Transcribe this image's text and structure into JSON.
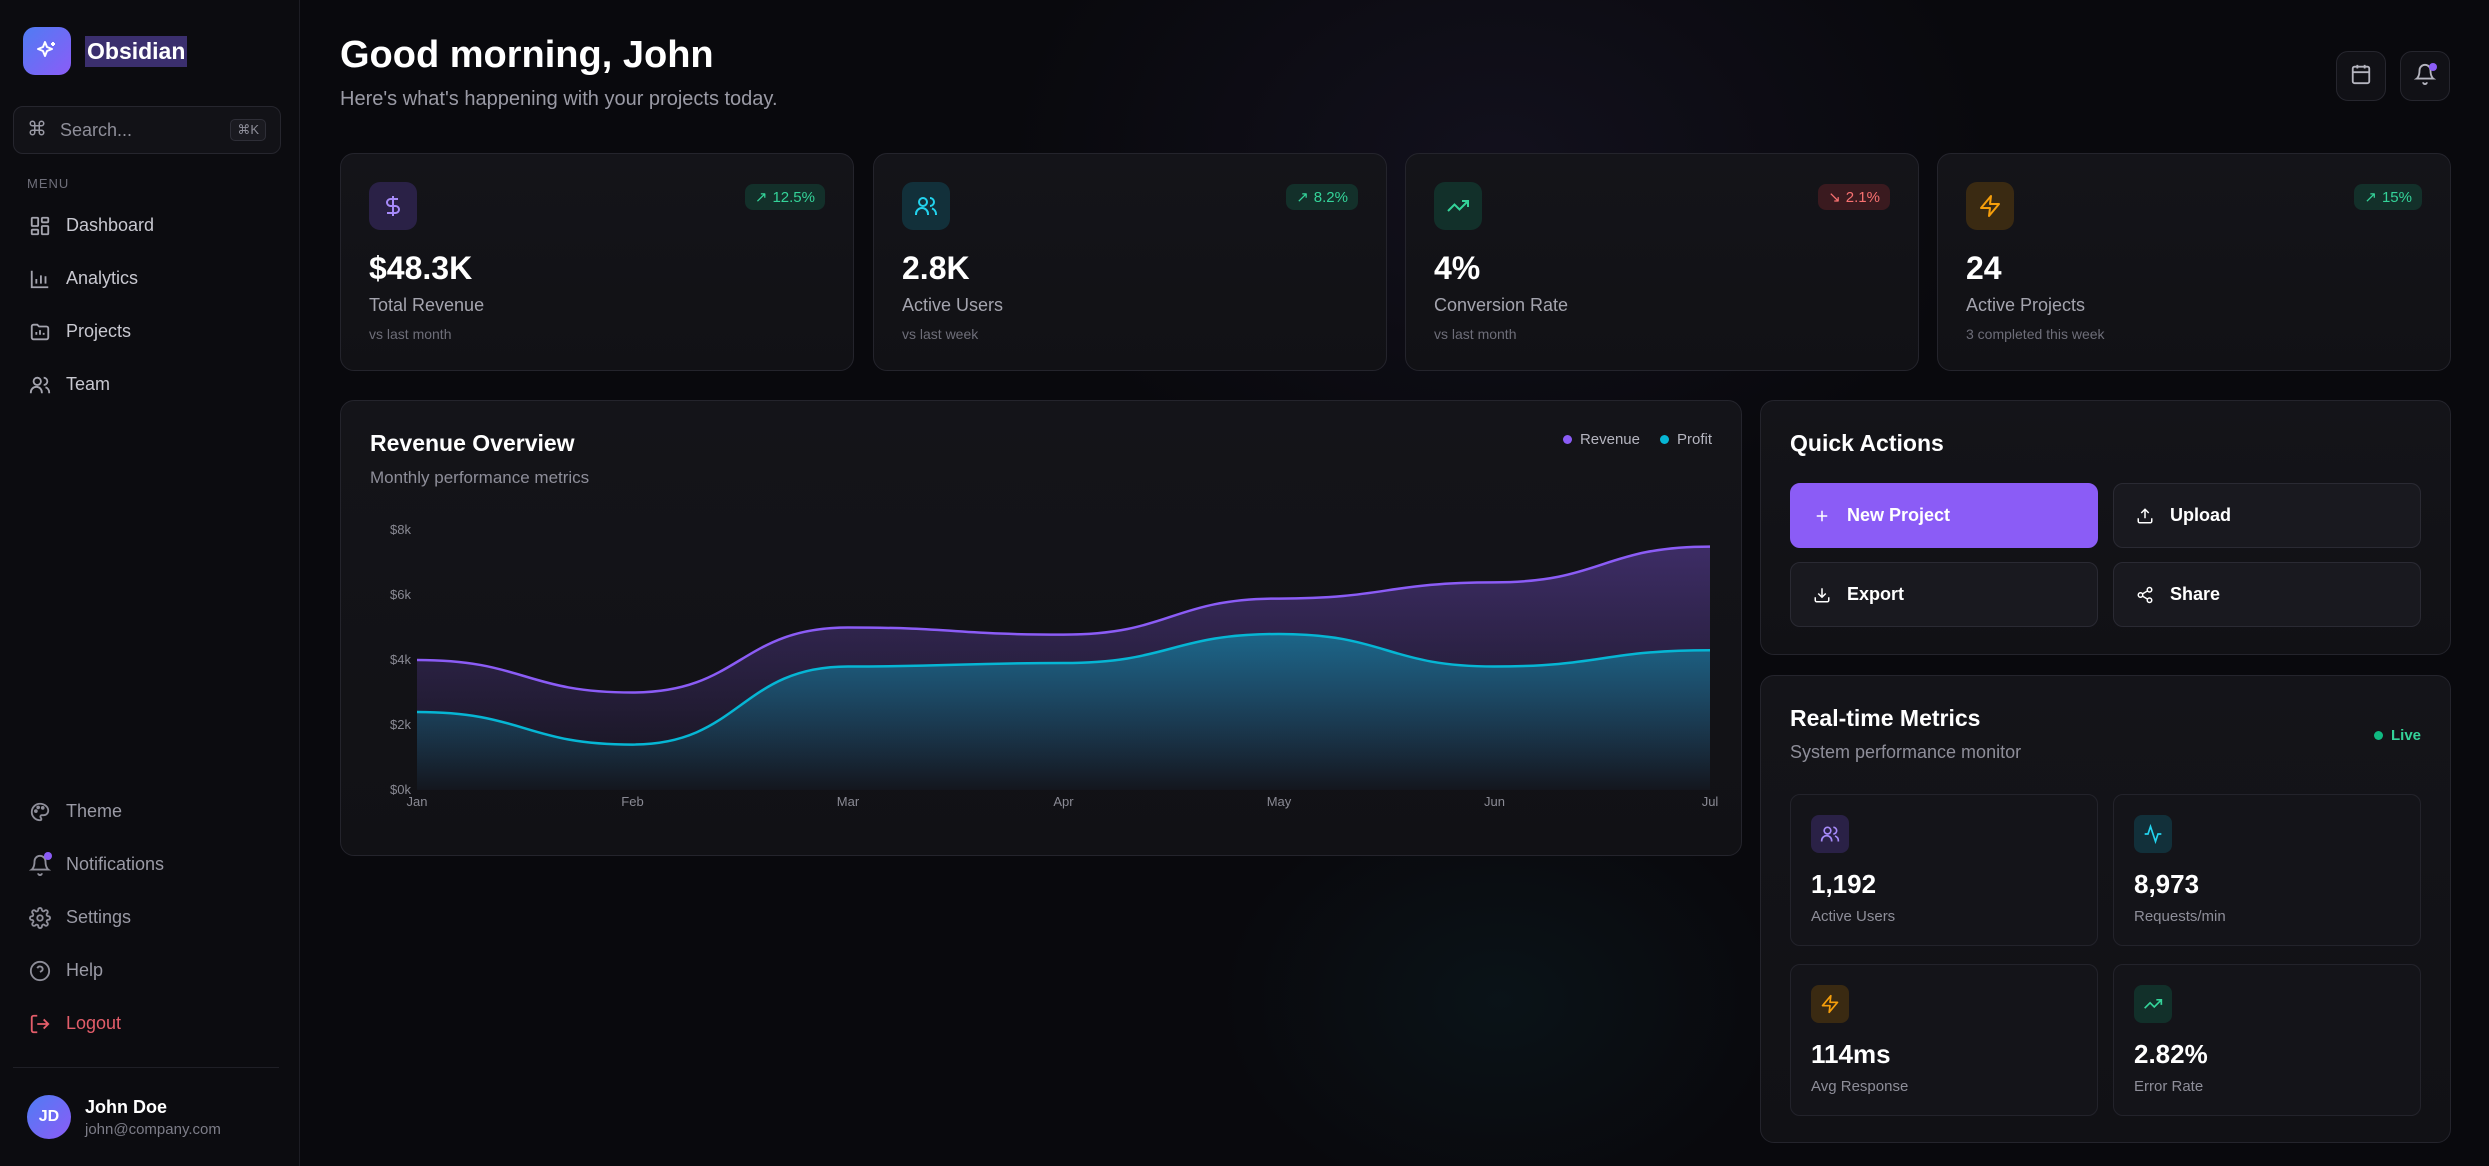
{
  "brand": {
    "name": "Obsidian"
  },
  "search": {
    "placeholder": "Search...",
    "shortcut": "⌘K"
  },
  "sidebar": {
    "menu_label": "MENU",
    "items": [
      {
        "label": "Dashboard",
        "icon": "grid-icon"
      },
      {
        "label": "Analytics",
        "icon": "bar-chart-icon"
      },
      {
        "label": "Projects",
        "icon": "folder-icon"
      },
      {
        "label": "Team",
        "icon": "users-icon"
      }
    ],
    "bottom_items": [
      {
        "label": "Theme",
        "icon": "palette-icon"
      },
      {
        "label": "Notifications",
        "icon": "bell-icon"
      },
      {
        "label": "Settings",
        "icon": "gear-icon"
      },
      {
        "label": "Help",
        "icon": "help-circle-icon"
      },
      {
        "label": "Logout",
        "icon": "logout-icon"
      }
    ],
    "user": {
      "initials": "JD",
      "name": "John Doe",
      "email": "john@company.com"
    }
  },
  "header": {
    "greeting": "Good morning, John",
    "subtitle": "Here's what's happening with your projects today."
  },
  "stats": [
    {
      "icon": "dollar-icon",
      "badge": "12.5%",
      "trend": "up",
      "value": "$48.3K",
      "label": "Total Revenue",
      "sub": "vs last month",
      "accent": "#8b5cf6"
    },
    {
      "icon": "users-icon",
      "badge": "8.2%",
      "trend": "up",
      "value": "2.8K",
      "label": "Active Users",
      "sub": "vs last week",
      "accent": "#22d3ee"
    },
    {
      "icon": "trending-up-icon",
      "badge": "2.1%",
      "trend": "down",
      "value": "4%",
      "label": "Conversion Rate",
      "sub": "vs last month",
      "accent": "#34d399"
    },
    {
      "icon": "zap-icon",
      "badge": "15%",
      "trend": "up",
      "value": "24",
      "label": "Active Projects",
      "sub": "3 completed this week",
      "accent": "#f59e0b"
    }
  ],
  "revenue_chart": {
    "title": "Revenue Overview",
    "subtitle": "Monthly performance metrics"
  },
  "chart_data": {
    "type": "area",
    "categories": [
      "Jan",
      "Feb",
      "Mar",
      "Apr",
      "May",
      "Jun",
      "Jul"
    ],
    "y_ticks": [
      "$0k",
      "$2k",
      "$4k",
      "$6k",
      "$8k"
    ],
    "ylim": [
      0,
      8000
    ],
    "series": [
      {
        "name": "Revenue",
        "values": [
          4000,
          3000,
          5000,
          4780,
          5890,
          6390,
          7490
        ],
        "color": "#8b5cf6"
      },
      {
        "name": "Profit",
        "values": [
          2400,
          1398,
          3800,
          3908,
          4800,
          3800,
          4300
        ],
        "color": "#06b6d4"
      }
    ],
    "legend": "top-right",
    "grid": false
  },
  "quick_actions": {
    "title": "Quick Actions",
    "buttons": [
      {
        "label": "New Project",
        "icon": "plus-icon"
      },
      {
        "label": "Upload",
        "icon": "upload-icon"
      },
      {
        "label": "Export",
        "icon": "download-icon"
      },
      {
        "label": "Share",
        "icon": "share-icon"
      }
    ]
  },
  "realtime": {
    "title": "Real-time Metrics",
    "subtitle": "System performance monitor",
    "status": "Live",
    "metrics": [
      {
        "value": "1,192",
        "label": "Active Users",
        "icon": "users-icon",
        "accent": "#8b5cf6"
      },
      {
        "value": "8,973",
        "label": "Requests/min",
        "icon": "activity-icon",
        "accent": "#22d3ee"
      },
      {
        "value": "114ms",
        "label": "Avg Response",
        "icon": "zap-icon",
        "accent": "#f59e0b"
      },
      {
        "value": "2.82%",
        "label": "Error Rate",
        "icon": "trending-up-icon",
        "accent": "#34d399"
      }
    ]
  }
}
